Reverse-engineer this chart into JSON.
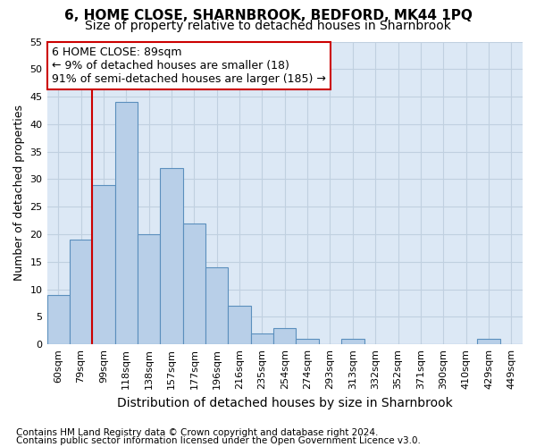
{
  "title": "6, HOME CLOSE, SHARNBROOK, BEDFORD, MK44 1PQ",
  "subtitle": "Size of property relative to detached houses in Sharnbrook",
  "xlabel": "Distribution of detached houses by size in Sharnbrook",
  "ylabel": "Number of detached properties",
  "footnote1": "Contains HM Land Registry data © Crown copyright and database right 2024.",
  "footnote2": "Contains public sector information licensed under the Open Government Licence v3.0.",
  "annotation_title": "6 HOME CLOSE: 89sqm",
  "annotation_line1": "← 9% of detached houses are smaller (18)",
  "annotation_line2": "91% of semi-detached houses are larger (185) →",
  "bar_labels": [
    "60sqm",
    "79sqm",
    "99sqm",
    "118sqm",
    "138sqm",
    "157sqm",
    "177sqm",
    "196sqm",
    "216sqm",
    "235sqm",
    "254sqm",
    "274sqm",
    "293sqm",
    "313sqm",
    "332sqm",
    "352sqm",
    "371sqm",
    "390sqm",
    "410sqm",
    "429sqm",
    "449sqm"
  ],
  "bar_values": [
    9,
    19,
    29,
    44,
    20,
    32,
    22,
    14,
    7,
    2,
    3,
    1,
    0,
    1,
    0,
    0,
    0,
    0,
    0,
    1,
    0
  ],
  "bar_color": "#b8cfe8",
  "bar_edge_color": "#5b8fbd",
  "vline_color": "#cc0000",
  "vline_position": 1.5,
  "ylim": [
    0,
    55
  ],
  "yticks": [
    0,
    5,
    10,
    15,
    20,
    25,
    30,
    35,
    40,
    45,
    50,
    55
  ],
  "grid_color": "#c0d0e0",
  "background_color": "#dce8f5",
  "annotation_box_facecolor": "#ffffff",
  "annotation_box_edgecolor": "#cc0000",
  "title_fontsize": 11,
  "subtitle_fontsize": 10,
  "xlabel_fontsize": 10,
  "ylabel_fontsize": 9,
  "tick_fontsize": 8,
  "annotation_fontsize": 9,
  "footnote_fontsize": 7.5
}
